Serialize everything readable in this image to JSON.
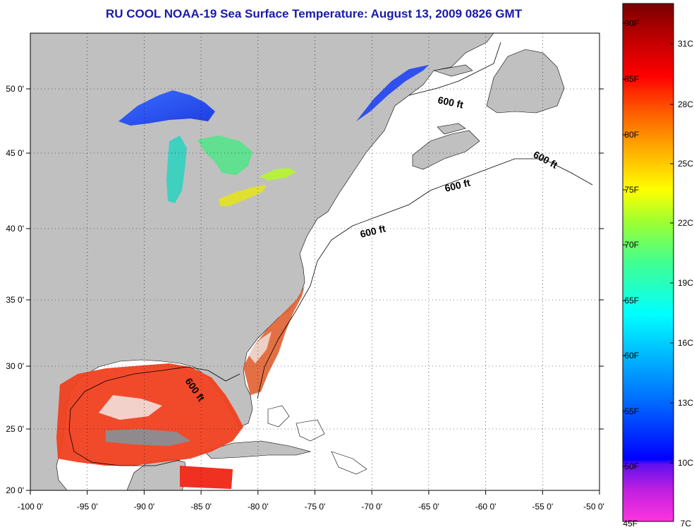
{
  "title": "RU COOL  NOAA-19  Sea Surface Temperature:  August 13, 2009 0826 GMT",
  "map": {
    "lon_ticks": [
      "-100 0'",
      "-95 0'",
      "-90 0'",
      "-85 0'",
      "-80 0'",
      "-75 0'",
      "-70 0'",
      "-65 0'",
      "-60 0'",
      "-55 0'",
      "-50 0'"
    ],
    "lat_ticks": [
      "50 0'",
      "45 0'",
      "40 0'",
      "35 0'",
      "30 0'",
      "25 0'",
      "20 0'"
    ],
    "contour_labels": [
      "600 ft",
      "600 ft",
      "600 ft",
      "600 ft",
      "600 ft"
    ],
    "land_color": "#c0c0c0",
    "ocean_color": "#ffffff"
  },
  "colorbar": {
    "fahrenheit_labels": [
      "90F",
      "85F",
      "80F",
      "75F",
      "70F",
      "65F",
      "60F",
      "55F",
      "50F",
      "45F"
    ],
    "celsius_labels": [
      "31C",
      "28C",
      "25C",
      "22C",
      "19C",
      "16C",
      "13C",
      "10C",
      "7C"
    ],
    "colors": [
      "#ff33cc",
      "#8020e0",
      "#0000ff",
      "#00a0ff",
      "#00ffff",
      "#40ff80",
      "#b0ff20",
      "#ffff00",
      "#ffa000",
      "#ff4000",
      "#ff0000",
      "#c00000",
      "#800000"
    ]
  }
}
